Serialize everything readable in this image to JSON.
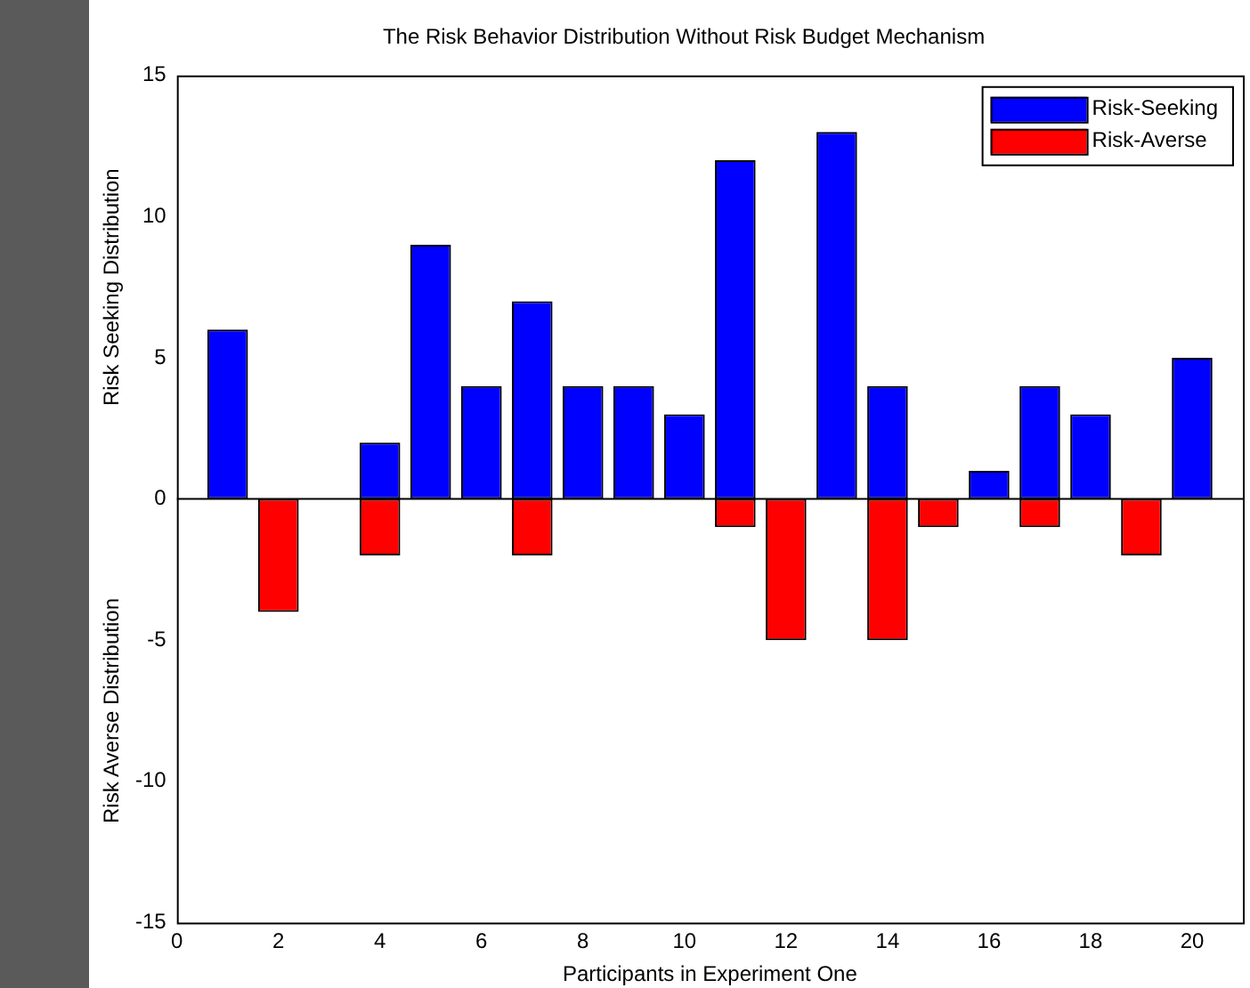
{
  "chart_data": {
    "type": "bar",
    "title": "The Risk Behavior Distribution Without Risk Budget Mechanism",
    "xlabel": "Participants in Experiment One",
    "ylabel": "Risk Seeking Distribution",
    "annotations": [
      "Risk Averse Distribution"
    ],
    "x": [
      1,
      2,
      3,
      4,
      5,
      6,
      7,
      8,
      9,
      10,
      11,
      12,
      13,
      14,
      15,
      16,
      17,
      18,
      19,
      20
    ],
    "series": [
      {
        "name": "Risk-Seeking",
        "color": "#0000ff",
        "values": [
          6,
          0,
          0,
          2,
          9,
          4,
          7,
          4,
          4,
          3,
          12,
          0,
          13,
          4,
          0,
          1,
          4,
          3,
          0,
          5
        ]
      },
      {
        "name": "Risk-Averse",
        "color": "#ff0000",
        "values": [
          0,
          -4,
          0,
          -2,
          0,
          0,
          -2,
          0,
          0,
          0,
          -1,
          -5,
          0,
          -5,
          -1,
          0,
          -1,
          0,
          -2,
          0
        ]
      }
    ],
    "stacked": true,
    "xlim": [
      0,
      21
    ],
    "xticks": [
      0,
      2,
      4,
      6,
      8,
      10,
      12,
      14,
      16,
      18,
      20
    ],
    "ylim": [
      -15,
      15
    ],
    "yticks": [
      -15,
      -10,
      -5,
      0,
      5,
      10,
      15
    ],
    "ref_lines": [
      {
        "axis": "y",
        "value": 0
      }
    ],
    "legend": "top right",
    "grid": false
  }
}
